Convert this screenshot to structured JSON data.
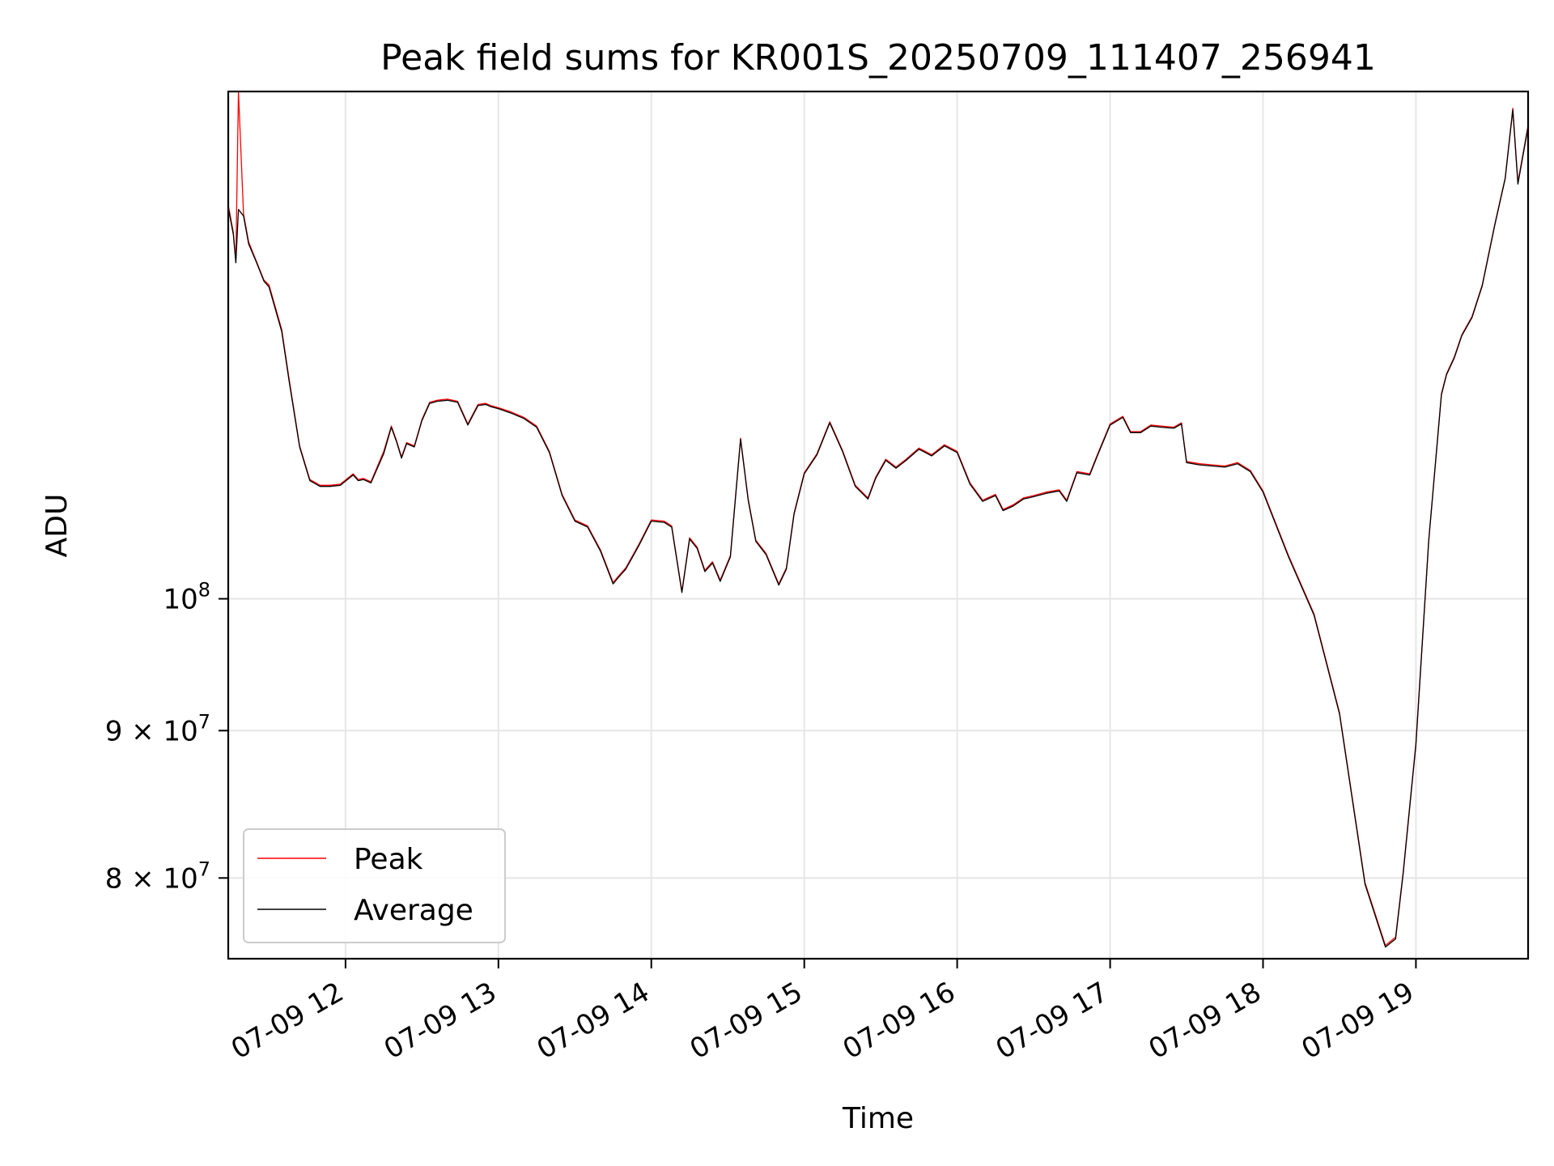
{
  "chart_data": {
    "type": "line",
    "title": "Peak field sums for KR001S_20250709_111407_256941",
    "xlabel": "Time",
    "ylabel": "ADU",
    "y_scale": "log",
    "grid": true,
    "legend_position": "lower-left",
    "x_range": [
      "07-09 11:14",
      "07-09 19:44"
    ],
    "ylim": [
      75000000,
      150000000
    ],
    "x_ticks": [
      {
        "time": "07-09 12:00",
        "label": "07-09 12"
      },
      {
        "time": "07-09 13:00",
        "label": "07-09 13"
      },
      {
        "time": "07-09 14:00",
        "label": "07-09 14"
      },
      {
        "time": "07-09 15:00",
        "label": "07-09 15"
      },
      {
        "time": "07-09 16:00",
        "label": "07-09 16"
      },
      {
        "time": "07-09 17:00",
        "label": "07-09 17"
      },
      {
        "time": "07-09 18:00",
        "label": "07-09 18"
      },
      {
        "time": "07-09 19:00",
        "label": "07-09 19"
      }
    ],
    "y_ticks": [
      {
        "value": 80000000,
        "label": "8 × 10",
        "exp": "7"
      },
      {
        "value": 90000000,
        "label": "9 × 10",
        "exp": "7"
      },
      {
        "value": 100000000,
        "label": "10",
        "exp": "8"
      }
    ],
    "x": [
      "07-09 11:14",
      "07-09 11:16",
      "07-09 11:17",
      "07-09 11:18",
      "07-09 11:20",
      "07-09 11:22",
      "07-09 11:25",
      "07-09 11:28",
      "07-09 11:30",
      "07-09 11:35",
      "07-09 11:38",
      "07-09 11:42",
      "07-09 11:46",
      "07-09 11:50",
      "07-09 11:54",
      "07-09 11:58",
      "07-09 12:03",
      "07-09 12:05",
      "07-09 12:07",
      "07-09 12:10",
      "07-09 12:15",
      "07-09 12:18",
      "07-09 12:20",
      "07-09 12:22",
      "07-09 12:24",
      "07-09 12:27",
      "07-09 12:30",
      "07-09 12:33",
      "07-09 12:36",
      "07-09 12:40",
      "07-09 12:44",
      "07-09 12:48",
      "07-09 12:52",
      "07-09 12:55",
      "07-09 12:57",
      "07-09 13:00",
      "07-09 13:05",
      "07-09 13:10",
      "07-09 13:15",
      "07-09 13:20",
      "07-09 13:25",
      "07-09 13:30",
      "07-09 13:35",
      "07-09 13:40",
      "07-09 13:45",
      "07-09 13:47",
      "07-09 13:50",
      "07-09 13:55",
      "07-09 14:00",
      "07-09 14:05",
      "07-09 14:08",
      "07-09 14:12",
      "07-09 14:15",
      "07-09 14:18",
      "07-09 14:21",
      "07-09 14:24",
      "07-09 14:27",
      "07-09 14:31",
      "07-09 14:35",
      "07-09 14:38",
      "07-09 14:41",
      "07-09 14:45",
      "07-09 14:50",
      "07-09 14:53",
      "07-09 14:56",
      "07-09 15:00",
      "07-09 15:05",
      "07-09 15:10",
      "07-09 15:15",
      "07-09 15:20",
      "07-09 15:25",
      "07-09 15:28",
      "07-09 15:32",
      "07-09 15:36",
      "07-09 15:40",
      "07-09 15:45",
      "07-09 15:50",
      "07-09 15:55",
      "07-09 16:00",
      "07-09 16:05",
      "07-09 16:10",
      "07-09 16:15",
      "07-09 16:18",
      "07-09 16:22",
      "07-09 16:26",
      "07-09 16:30",
      "07-09 16:35",
      "07-09 16:40",
      "07-09 16:43",
      "07-09 16:47",
      "07-09 16:52",
      "07-09 16:55",
      "07-09 17:00",
      "07-09 17:05",
      "07-09 17:08",
      "07-09 17:12",
      "07-09 17:16",
      "07-09 17:20",
      "07-09 17:25",
      "07-09 17:28",
      "07-09 17:30",
      "07-09 17:35",
      "07-09 17:40",
      "07-09 17:45",
      "07-09 17:50",
      "07-09 17:55",
      "07-09 18:00",
      "07-09 18:10",
      "07-09 18:20",
      "07-09 18:30",
      "07-09 18:40",
      "07-09 18:48",
      "07-09 18:52",
      "07-09 18:55",
      "07-09 19:00",
      "07-09 19:05",
      "07-09 19:10",
      "07-09 19:12",
      "07-09 19:15",
      "07-09 19:18",
      "07-09 19:22",
      "07-09 19:26",
      "07-09 19:31",
      "07-09 19:35",
      "07-09 19:38",
      "07-09 19:40",
      "07-09 19:44"
    ],
    "series": [
      {
        "name": "Peak",
        "color": "#ff0000",
        "line_width": 1.3,
        "values": [
          137000000,
          134000000,
          131000000,
          150000000,
          136000000,
          133000000,
          131000000,
          129000000,
          128500000,
          124000000,
          119000000,
          113000000,
          110000000,
          109500000,
          109500000,
          109600000,
          110500000,
          110000000,
          110100000,
          109800000,
          112500000,
          114800000,
          113500000,
          112000000,
          113300000,
          113000000,
          115400000,
          117000000,
          117200000,
          117300000,
          117100000,
          115000000,
          116800000,
          116900000,
          116700000,
          116500000,
          116100000,
          115600000,
          114800000,
          112500000,
          108700000,
          106500000,
          106000000,
          104000000,
          101300000,
          101800000,
          102500000,
          104400000,
          106500000,
          106400000,
          106000000,
          100600000,
          105000000,
          104200000,
          102300000,
          103000000,
          101500000,
          103500000,
          113700000,
          108300000,
          104800000,
          103700000,
          101200000,
          102500000,
          107100000,
          110600000,
          112300000,
          115200000,
          112600000,
          109500000,
          108400000,
          110200000,
          111800000,
          111100000,
          111800000,
          112800000,
          112200000,
          113100000,
          112500000,
          109700000,
          108200000,
          108700000,
          107400000,
          107800000,
          108400000,
          108600000,
          108900000,
          109100000,
          108200000,
          110700000,
          110500000,
          112200000,
          115000000,
          115700000,
          114300000,
          114300000,
          114900000,
          114800000,
          114700000,
          115100000,
          111600000,
          111400000,
          111300000,
          111200000,
          111500000,
          110800000,
          109000000,
          103500000,
          98800000,
          91300000,
          79700000,
          75800000,
          76300000,
          80400000,
          89100000,
          104800000,
          117800000,
          119700000,
          121300000,
          123500000,
          125300000,
          128500000,
          135000000,
          140000000,
          148000000,
          139500000,
          146000000
        ]
      },
      {
        "name": "Average",
        "color": "#000000",
        "line_width": 1.3,
        "values": [
          136700000,
          133800000,
          130800000,
          136500000,
          135800000,
          132800000,
          130900000,
          128900000,
          128300000,
          123800000,
          118800000,
          112900000,
          109900000,
          109400000,
          109400000,
          109500000,
          110400000,
          109900000,
          110000000,
          109700000,
          112300000,
          114700000,
          113400000,
          111900000,
          113200000,
          112900000,
          115300000,
          116900000,
          117100000,
          117200000,
          117000000,
          114900000,
          116700000,
          116800000,
          116600000,
          116400000,
          116000000,
          115500000,
          114700000,
          112400000,
          108600000,
          106400000,
          105900000,
          103900000,
          101200000,
          101700000,
          102400000,
          104300000,
          106400000,
          106300000,
          105900000,
          100500000,
          104900000,
          104100000,
          102200000,
          102900000,
          101400000,
          103400000,
          113600000,
          108200000,
          104700000,
          103600000,
          101100000,
          102400000,
          107000000,
          110500000,
          112200000,
          115100000,
          112500000,
          109400000,
          108300000,
          110100000,
          111700000,
          111000000,
          111700000,
          112700000,
          112100000,
          113000000,
          112400000,
          109600000,
          108100000,
          108600000,
          107300000,
          107700000,
          108300000,
          108500000,
          108800000,
          109000000,
          108100000,
          110600000,
          110400000,
          112100000,
          114900000,
          115600000,
          114200000,
          114200000,
          114800000,
          114700000,
          114600000,
          115000000,
          111500000,
          111300000,
          111200000,
          111100000,
          111400000,
          110700000,
          108900000,
          103400000,
          98700000,
          91200000,
          79600000,
          75700000,
          76200000,
          80300000,
          89000000,
          104700000,
          117700000,
          119600000,
          121200000,
          123400000,
          125200000,
          128400000,
          134900000,
          139900000,
          147800000,
          139300000,
          145800000
        ]
      }
    ]
  }
}
